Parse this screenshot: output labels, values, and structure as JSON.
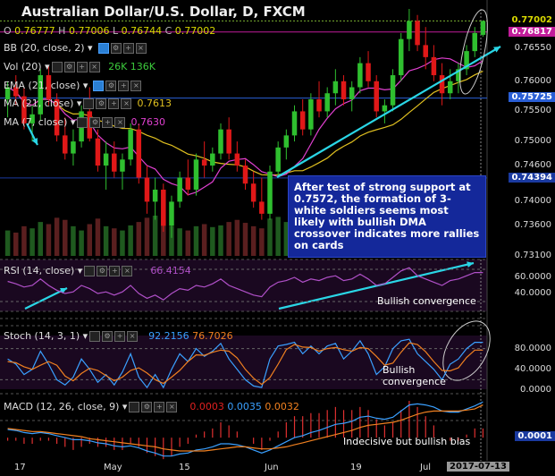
{
  "header": {
    "title": "Australian Dollar/U.S. Dollar, D, FXCM",
    "ohlc": {
      "o_label": "O",
      "o": "0.76777",
      "h_label": "H",
      "h": "0.77006",
      "l_label": "L",
      "l": "0.76744",
      "c_label": "C",
      "c": "0.77002"
    }
  },
  "indicators": {
    "bb": "BB (20, close, 2)",
    "vol": "Vol (20)",
    "vol_values": {
      "a": "26K",
      "b": "136K"
    },
    "ema": "EMA (21, close)",
    "ma21": "MA (21, close)",
    "ma21_value": "0.7613",
    "ma7": "MA (7, close)",
    "ma7_value": "0.7630",
    "rsi": "RSI (14, close)",
    "rsi_value": "66.4154",
    "stoch": "Stoch (14, 3, 1)",
    "stoch_k": "92.2156",
    "stoch_d": "76.7026",
    "macd": "MACD (12, 26, close, 9)",
    "macd_v1": "0.0003",
    "macd_v2": "0.0035",
    "macd_v3": "0.0032"
  },
  "annotations": {
    "main_note": "After test of strong support at 0.7572, the formation of 3-white soldiers seems most likely with bullish DMA crossover indicates more rallies on cards",
    "rsi_note": "Bullish convergence",
    "stoch_note": "Bullish convergence",
    "macd_note": "Indecisive but bullish bias"
  },
  "price_axis": {
    "labels": [
      "0.76550",
      "0.76000",
      "0.75500",
      "0.75000",
      "0.74600",
      "0.74000",
      "0.73600",
      "0.73100"
    ],
    "tags": [
      {
        "text": "0.77002",
        "color": "#d8d800",
        "bg": "#000"
      },
      {
        "text": "0.76817",
        "color": "#fff",
        "bg": "#c21c9a"
      },
      {
        "text": "0.75725",
        "color": "#fff",
        "bg": "#2a5fd6"
      },
      {
        "text": "0.74394",
        "color": "#fff",
        "bg": "#1a3aa0"
      }
    ]
  },
  "rsi_axis": {
    "labels": [
      "60.0000",
      "40.0000"
    ]
  },
  "stoch_axis": {
    "labels": [
      "80.0000",
      "40.0000",
      "0.0000"
    ]
  },
  "macd_axis": {
    "labels": [
      "0.0001"
    ]
  },
  "time_axis": {
    "labels": [
      "17",
      "May",
      "15",
      "Jun",
      "19",
      "Jul",
      "13"
    ],
    "cursor_date": "2017-07-13"
  },
  "colors": {
    "up": "#2fbf2f",
    "down": "#e01818",
    "bb": "#e040d0",
    "ema": "#e0c020",
    "accent": "#2ad6e6"
  },
  "chart_data": {
    "type": "candlestick",
    "title": "Australian Dollar/U.S. Dollar, D, FXCM",
    "ylim": [
      0.731,
      0.772
    ],
    "candles": [
      [
        0.757,
        0.76,
        0.754,
        0.759
      ],
      [
        0.759,
        0.761,
        0.756,
        0.7575
      ],
      [
        0.7575,
        0.759,
        0.752,
        0.753
      ],
      [
        0.753,
        0.756,
        0.75,
        0.7545
      ],
      [
        0.7545,
        0.762,
        0.7535,
        0.761
      ],
      [
        0.761,
        0.7625,
        0.756,
        0.757
      ],
      [
        0.757,
        0.758,
        0.75,
        0.751
      ],
      [
        0.751,
        0.754,
        0.747,
        0.748
      ],
      [
        0.748,
        0.752,
        0.746,
        0.75
      ],
      [
        0.75,
        0.756,
        0.749,
        0.755
      ],
      [
        0.755,
        0.759,
        0.75,
        0.7505
      ],
      [
        0.7505,
        0.752,
        0.745,
        0.746
      ],
      [
        0.746,
        0.75,
        0.742,
        0.748
      ],
      [
        0.748,
        0.75,
        0.744,
        0.745
      ],
      [
        0.745,
        0.748,
        0.742,
        0.747
      ],
      [
        0.747,
        0.753,
        0.746,
        0.752
      ],
      [
        0.752,
        0.753,
        0.743,
        0.744
      ],
      [
        0.744,
        0.746,
        0.738,
        0.74
      ],
      [
        0.74,
        0.744,
        0.737,
        0.742
      ],
      [
        0.742,
        0.743,
        0.735,
        0.736
      ],
      [
        0.736,
        0.741,
        0.734,
        0.74
      ],
      [
        0.74,
        0.745,
        0.739,
        0.744
      ],
      [
        0.744,
        0.747,
        0.741,
        0.742
      ],
      [
        0.742,
        0.748,
        0.741,
        0.747
      ],
      [
        0.747,
        0.75,
        0.744,
        0.746
      ],
      [
        0.746,
        0.749,
        0.745,
        0.748
      ],
      [
        0.748,
        0.753,
        0.747,
        0.752
      ],
      [
        0.752,
        0.754,
        0.747,
        0.748
      ],
      [
        0.748,
        0.75,
        0.745,
        0.746
      ],
      [
        0.746,
        0.747,
        0.742,
        0.743
      ],
      [
        0.743,
        0.745,
        0.739,
        0.74
      ],
      [
        0.74,
        0.744,
        0.737,
        0.738
      ],
      [
        0.738,
        0.746,
        0.737,
        0.745
      ],
      [
        0.745,
        0.75,
        0.744,
        0.749
      ],
      [
        0.749,
        0.752,
        0.747,
        0.751
      ],
      [
        0.751,
        0.756,
        0.75,
        0.755
      ],
      [
        0.755,
        0.757,
        0.751,
        0.752
      ],
      [
        0.752,
        0.758,
        0.751,
        0.757
      ],
      [
        0.757,
        0.76,
        0.754,
        0.755
      ],
      [
        0.755,
        0.759,
        0.754,
        0.758
      ],
      [
        0.758,
        0.762,
        0.756,
        0.76
      ],
      [
        0.76,
        0.761,
        0.756,
        0.757
      ],
      [
        0.757,
        0.76,
        0.755,
        0.759
      ],
      [
        0.759,
        0.764,
        0.758,
        0.763
      ],
      [
        0.763,
        0.765,
        0.759,
        0.76
      ],
      [
        0.76,
        0.761,
        0.754,
        0.755
      ],
      [
        0.755,
        0.757,
        0.753,
        0.756
      ],
      [
        0.756,
        0.762,
        0.755,
        0.761
      ],
      [
        0.761,
        0.768,
        0.76,
        0.767
      ],
      [
        0.767,
        0.772,
        0.765,
        0.77
      ],
      [
        0.77,
        0.771,
        0.765,
        0.766
      ],
      [
        0.766,
        0.769,
        0.762,
        0.764
      ],
      [
        0.764,
        0.766,
        0.76,
        0.761
      ],
      [
        0.761,
        0.763,
        0.756,
        0.758
      ],
      [
        0.758,
        0.762,
        0.757,
        0.76
      ],
      [
        0.76,
        0.763,
        0.758,
        0.762
      ],
      [
        0.762,
        0.766,
        0.761,
        0.765
      ],
      [
        0.765,
        0.769,
        0.764,
        0.768
      ],
      [
        0.7677,
        0.7701,
        0.7674,
        0.77
      ]
    ],
    "volume": [
      60,
      55,
      70,
      65,
      80,
      75,
      90,
      85,
      70,
      60,
      75,
      88,
      70,
      65,
      60,
      72,
      80,
      90,
      95,
      85,
      70,
      65,
      60,
      70,
      75,
      68,
      72,
      80,
      85,
      78,
      70,
      65,
      88,
      92,
      80,
      75,
      70,
      66,
      72,
      80,
      85,
      78,
      70,
      90,
      95,
      88,
      76,
      70,
      85,
      92,
      80,
      75,
      70,
      82,
      88,
      90,
      70,
      60,
      50
    ],
    "rsi": [
      55,
      52,
      48,
      50,
      58,
      50,
      44,
      40,
      42,
      50,
      46,
      40,
      42,
      38,
      42,
      50,
      40,
      34,
      38,
      32,
      40,
      46,
      44,
      50,
      48,
      52,
      58,
      50,
      46,
      42,
      38,
      36,
      48,
      54,
      56,
      60,
      54,
      58,
      56,
      60,
      62,
      56,
      58,
      64,
      58,
      50,
      52,
      60,
      68,
      72,
      62,
      58,
      54,
      50,
      56,
      58,
      62,
      66,
      66
    ],
    "stoch_k": [
      60,
      50,
      30,
      40,
      75,
      50,
      20,
      10,
      25,
      60,
      40,
      15,
      30,
      10,
      35,
      70,
      25,
      5,
      30,
      5,
      40,
      70,
      55,
      80,
      65,
      75,
      90,
      60,
      40,
      20,
      8,
      5,
      60,
      85,
      88,
      92,
      70,
      85,
      70,
      85,
      90,
      60,
      75,
      95,
      70,
      30,
      45,
      80,
      95,
      98,
      70,
      55,
      40,
      20,
      50,
      60,
      80,
      92,
      92
    ],
    "stoch_d": [
      55,
      53,
      45,
      40,
      48,
      55,
      48,
      27,
      18,
      32,
      42,
      38,
      28,
      18,
      25,
      38,
      43,
      33,
      20,
      13,
      25,
      38,
      55,
      68,
      67,
      73,
      77,
      75,
      62,
      40,
      23,
      11,
      24,
      50,
      78,
      88,
      83,
      82,
      75,
      80,
      82,
      78,
      75,
      82,
      80,
      65,
      48,
      52,
      73,
      91,
      88,
      74,
      55,
      38,
      37,
      43,
      63,
      77,
      77
    ],
    "macd": [
      0.0008,
      0.0007,
      0.0005,
      0.0004,
      0.0005,
      0.0004,
      0.0002,
      0.0,
      -0.0002,
      -0.0002,
      -0.0003,
      -0.0005,
      -0.0006,
      -0.0008,
      -0.0009,
      -0.0008,
      -0.001,
      -0.0013,
      -0.0015,
      -0.0018,
      -0.0018,
      -0.0016,
      -0.0015,
      -0.0012,
      -0.0011,
      -0.0009,
      -0.0006,
      -0.0006,
      -0.0007,
      -0.0009,
      -0.0012,
      -0.0015,
      -0.0012,
      -0.0008,
      -0.0004,
      0.0,
      0.0002,
      0.0005,
      0.0007,
      0.001,
      0.0013,
      0.0014,
      0.0016,
      0.002,
      0.0021,
      0.0019,
      0.0018,
      0.002,
      0.0026,
      0.0032,
      0.0033,
      0.0032,
      0.003,
      0.0026,
      0.0025,
      0.0025,
      0.0028,
      0.0031,
      0.0035
    ],
    "macd_signal": [
      0.0009,
      0.0008,
      0.0007,
      0.0006,
      0.0006,
      0.0005,
      0.0004,
      0.0003,
      0.0002,
      0.0001,
      -0.0001,
      -0.0002,
      -0.0003,
      -0.0004,
      -0.0005,
      -0.0006,
      -0.0007,
      -0.0008,
      -0.0009,
      -0.0011,
      -0.0012,
      -0.0013,
      -0.0013,
      -0.0013,
      -0.0013,
      -0.0012,
      -0.0011,
      -0.001,
      -0.0009,
      -0.0009,
      -0.001,
      -0.0011,
      -0.0011,
      -0.001,
      -0.0009,
      -0.0007,
      -0.0005,
      -0.0003,
      -0.0001,
      0.0001,
      0.0003,
      0.0005,
      0.0007,
      0.001,
      0.0012,
      0.0013,
      0.0014,
      0.0015,
      0.0017,
      0.002,
      0.0023,
      0.0025,
      0.0026,
      0.0026,
      0.0026,
      0.0026,
      0.0027,
      0.0028,
      0.0032
    ]
  }
}
